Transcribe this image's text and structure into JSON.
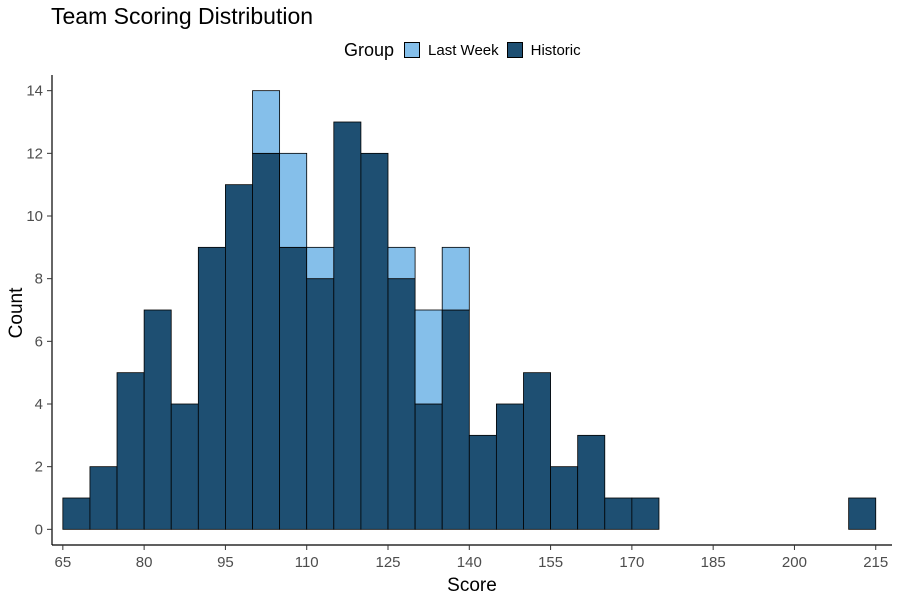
{
  "chart_data": {
    "type": "histogram",
    "title": "Team Scoring Distribution",
    "xlabel": "Score",
    "ylabel": "Count",
    "legend": {
      "title": "Group",
      "position": "top",
      "entries": [
        {
          "name": "Last Week",
          "color": "#85BFEA"
        },
        {
          "name": "Historic",
          "color": "#1E4F72"
        }
      ]
    },
    "bin_width": 5,
    "xlim": [
      63,
      218
    ],
    "ylim": [
      -0.5,
      14.5
    ],
    "x_ticks": [
      65,
      80,
      95,
      110,
      125,
      140,
      155,
      170,
      185,
      200,
      215
    ],
    "y_ticks": [
      0,
      2,
      4,
      6,
      8,
      10,
      12,
      14
    ],
    "bins": [
      65,
      70,
      75,
      80,
      85,
      90,
      95,
      100,
      105,
      110,
      115,
      120,
      125,
      130,
      135,
      140,
      145,
      150,
      155,
      160,
      165,
      170,
      175,
      180,
      185,
      190,
      195,
      200,
      205,
      210
    ],
    "series": [
      {
        "name": "Historic",
        "values": [
          1,
          2,
          5,
          7,
          4,
          9,
          11,
          12,
          9,
          8,
          13,
          12,
          8,
          4,
          7,
          3,
          4,
          5,
          2,
          3,
          1,
          1,
          0,
          0,
          0,
          0,
          0,
          0,
          0,
          1
        ]
      },
      {
        "name": "Last Week",
        "values": [
          0,
          0,
          0,
          0,
          0,
          0,
          0,
          2,
          3,
          1,
          0,
          0,
          1,
          3,
          2,
          0,
          0,
          0,
          0,
          0,
          0,
          0,
          0,
          0,
          0,
          0,
          0,
          0,
          0,
          0
        ]
      }
    ],
    "grid": false
  }
}
